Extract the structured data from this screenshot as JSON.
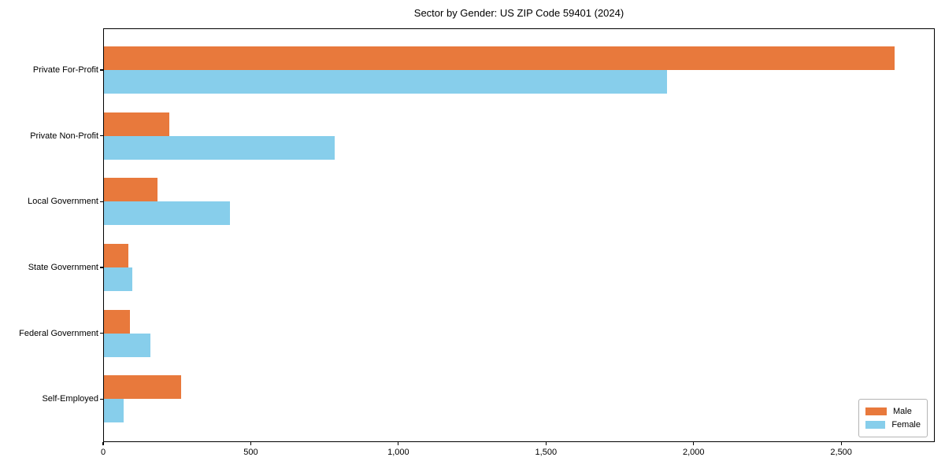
{
  "chart_data": {
    "type": "bar",
    "orientation": "horizontal",
    "title": "Sector by Gender: US ZIP Code 59401 (2024)",
    "categories": [
      "Private For-Profit",
      "Private Non-Profit",
      "Local Government",
      "State Government",
      "Federal Government",
      "Self-Employed"
    ],
    "series": [
      {
        "name": "Male",
        "color": "#E8793C",
        "values": [
          2680,
          225,
          185,
          85,
          90,
          265
        ]
      },
      {
        "name": "Female",
        "color": "#87CEEB",
        "values": [
          1910,
          785,
          430,
          100,
          160,
          70
        ]
      }
    ],
    "xlabel": "",
    "ylabel": "",
    "xlim": [
      0,
      2817
    ],
    "xticks": [
      0,
      500,
      1000,
      1500,
      2000,
      2500
    ],
    "xtick_labels": [
      "0",
      "500",
      "1,000",
      "1,500",
      "2,000",
      "2,500"
    ],
    "grid": false,
    "legend_position": "lower-right",
    "background_color": "#FFFFFF",
    "axis_color": "#000000"
  }
}
